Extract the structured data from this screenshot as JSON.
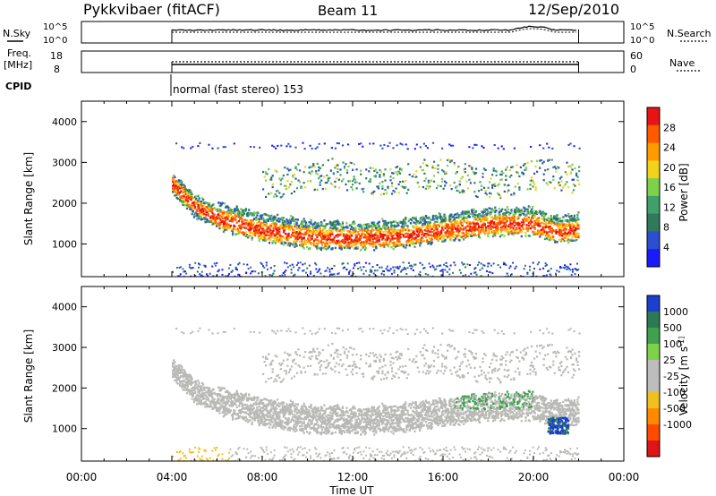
{
  "header": {
    "station": "Pykkvibaer (fitACF)",
    "beam": "Beam 11",
    "date": "12/Sep/2010"
  },
  "noise_panel": {
    "left_label": "N.Sky",
    "right_label": "N.Search",
    "ticks_left": [
      "10^5",
      "10^0"
    ],
    "ticks_right": [
      "10^5",
      "10^0"
    ]
  },
  "freq_panel": {
    "left_label_1": "Freq.",
    "left_label_2": "[MHz]",
    "right_label": "Nave",
    "ticks_left": [
      "18",
      "8"
    ],
    "ticks_right": [
      "60",
      "0"
    ]
  },
  "cpid": {
    "label": "CPID",
    "mode_text": "normal (fast stereo) 153"
  },
  "colors": {
    "power_scale": [
      "#1a1aff",
      "#2a4fd0",
      "#2f7a5a",
      "#3fa06a",
      "#7fd04a",
      "#f2d21a",
      "#ff9a00",
      "#ff5a00",
      "#e61414"
    ],
    "velocity_scale": [
      "#1c3fd0",
      "#2a7a55",
      "#40a050",
      "#7ed24a",
      "#bdbdbd",
      "#bdbdbd",
      "#f0c020",
      "#ff8a00",
      "#ff4a00",
      "#e01414"
    ],
    "ground_scatter": "#b9b9b5"
  },
  "time_axis": {
    "tick_labels": [
      "00:00",
      "04:00",
      "08:00",
      "12:00",
      "16:00",
      "20:00",
      "00:00"
    ],
    "label": "Time UT"
  },
  "chart_data": [
    {
      "type": "heatmap",
      "panel": "power",
      "ylabel": "Slant Range [km]",
      "ylim": [
        200,
        4500
      ],
      "y_ticks": [
        "1000",
        "2000",
        "3000",
        "4000"
      ],
      "colorbar_label": "Power [dB]",
      "colorbar_ticks": [
        "4",
        "8",
        "12",
        "16",
        "20",
        "24",
        "28"
      ],
      "colorbar_range": [
        0,
        32
      ],
      "x_range_hours": [
        0,
        24
      ],
      "data_window_hours": [
        4,
        22
      ],
      "main_band_range_km": [
        [
          4,
          2500
        ],
        [
          5,
          1950
        ],
        [
          6,
          1650
        ],
        [
          8,
          1350
        ],
        [
          10,
          1200
        ],
        [
          12,
          1150
        ],
        [
          14,
          1200
        ],
        [
          16,
          1350
        ],
        [
          18,
          1500
        ],
        [
          20,
          1500
        ],
        [
          21,
          1300
        ],
        [
          22,
          1400
        ]
      ]
    },
    {
      "type": "heatmap",
      "panel": "velocity",
      "ylabel": "Slant Range [km]",
      "ylim": [
        200,
        4500
      ],
      "y_ticks": [
        "1000",
        "2000",
        "3000",
        "4000"
      ],
      "colorbar_label": "Velocity [m s^-1]",
      "colorbar_ticks": [
        "1000",
        "500",
        "100",
        "25",
        "-25",
        "-100",
        "-500",
        "-1000"
      ],
      "x_range_hours": [
        0,
        24
      ],
      "data_window_hours": [
        4,
        22
      ]
    }
  ]
}
